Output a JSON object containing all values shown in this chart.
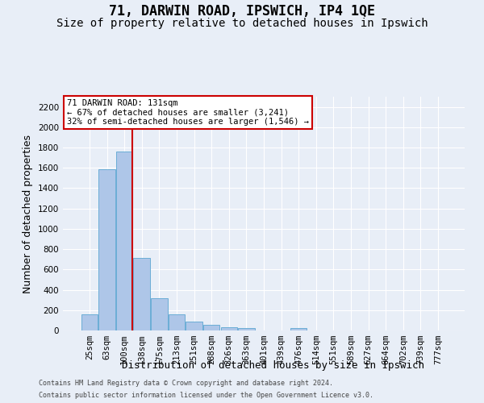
{
  "title": "71, DARWIN ROAD, IPSWICH, IP4 1QE",
  "subtitle": "Size of property relative to detached houses in Ipswich",
  "xlabel": "Distribution of detached houses by size in Ipswich",
  "ylabel": "Number of detached properties",
  "footer_line1": "Contains HM Land Registry data © Crown copyright and database right 2024.",
  "footer_line2": "Contains public sector information licensed under the Open Government Licence v3.0.",
  "categories": [
    "25sqm",
    "63sqm",
    "100sqm",
    "138sqm",
    "175sqm",
    "213sqm",
    "251sqm",
    "288sqm",
    "326sqm",
    "363sqm",
    "401sqm",
    "439sqm",
    "476sqm",
    "514sqm",
    "551sqm",
    "589sqm",
    "627sqm",
    "664sqm",
    "702sqm",
    "739sqm",
    "777sqm"
  ],
  "values": [
    160,
    1590,
    1760,
    710,
    315,
    160,
    90,
    55,
    30,
    25,
    0,
    0,
    20,
    0,
    0,
    0,
    0,
    0,
    0,
    0,
    0
  ],
  "bar_color": "#aec6e8",
  "bar_edge_color": "#6badd6",
  "red_line_color": "#cc0000",
  "annotation_text": "71 DARWIN ROAD: 131sqm\n← 67% of detached houses are smaller (3,241)\n32% of semi-detached houses are larger (1,546) →",
  "annotation_box_color": "#ffffff",
  "annotation_box_edge_color": "#cc0000",
  "ylim": [
    0,
    2300
  ],
  "yticks": [
    0,
    200,
    400,
    600,
    800,
    1000,
    1200,
    1400,
    1600,
    1800,
    2000,
    2200
  ],
  "background_color": "#e8eef7",
  "grid_color": "#ffffff",
  "title_fontsize": 12,
  "subtitle_fontsize": 10,
  "axis_label_fontsize": 9,
  "tick_fontsize": 7.5,
  "footer_fontsize": 6
}
